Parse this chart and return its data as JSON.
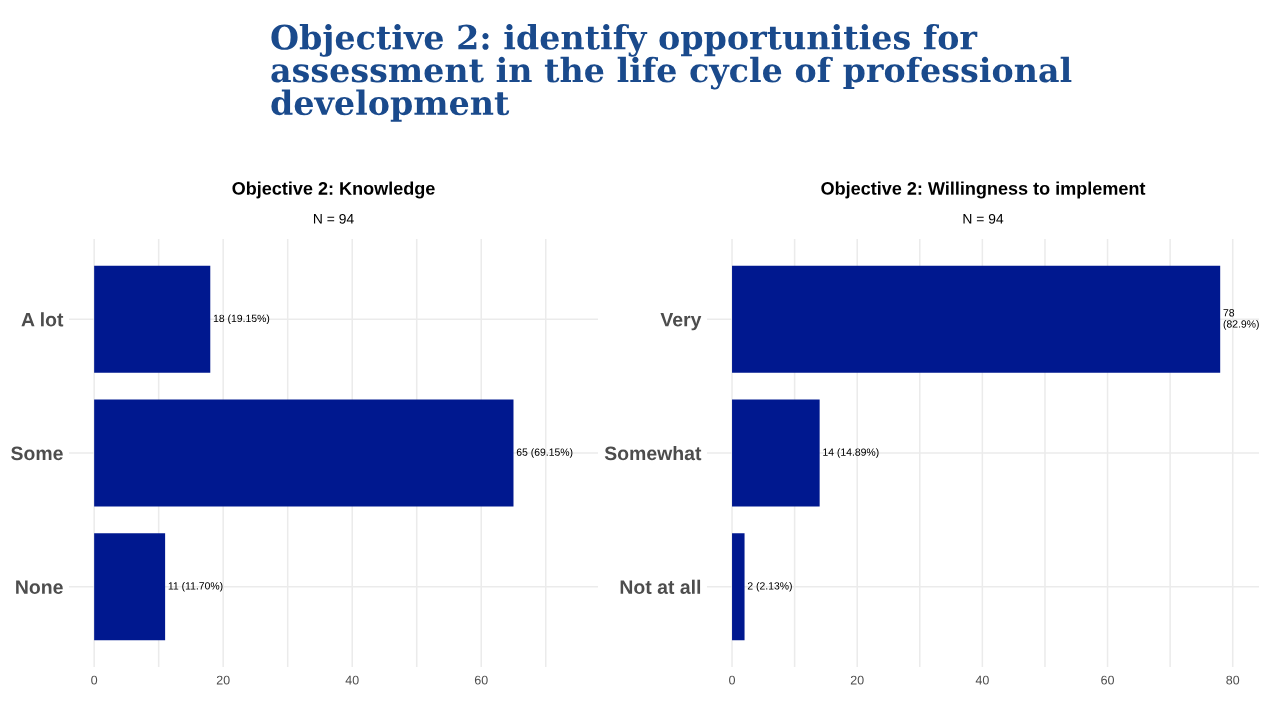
{
  "chart_data": [
    {
      "type": "bar",
      "orientation": "horizontal",
      "title": "Objective 2: Knowledge",
      "subtitle": "N = 94",
      "categories": [
        "A lot",
        "Some",
        "None"
      ],
      "values": [
        18,
        65,
        11
      ],
      "color": "#00188f",
      "value_labels": [
        "18 (19.15%)",
        "65 (69.15%)",
        "11 (11.70%)"
      ],
      "xlim": [
        -3.9,
        78.1
      ],
      "xticks": [
        0,
        {
          "value": 10,
          "label": null
        },
        20,
        {
          "value": 30,
          "label": null
        },
        40,
        {
          "value": 50,
          "label": null
        },
        60,
        {
          "value": 70,
          "label": null
        }
      ],
      "grid": true,
      "annotations": [
        "Objective 2: identify opportunities for assessment in the life cycle of professional development"
      ]
    },
    {
      "type": "bar",
      "orientation": "horizontal",
      "title": "Objective 2: Willingness to implement",
      "subtitle": "N = 94",
      "categories": [
        "Very",
        "Somewhat",
        "Not at all"
      ],
      "values": [
        78,
        14,
        2
      ],
      "color": "#00188f",
      "value_labels": [
        "78 (82.9%)",
        "14 (14.89%)",
        "2 (2.13%)"
      ],
      "xlim": [
        -4,
        84.2
      ],
      "xticks": [
        0,
        {
          "value": 10,
          "label": null
        },
        20,
        {
          "value": 30,
          "label": null
        },
        40,
        {
          "value": 50,
          "label": null
        },
        60,
        {
          "value": 70,
          "label": null
        },
        80
      ],
      "grid": true
    }
  ]
}
